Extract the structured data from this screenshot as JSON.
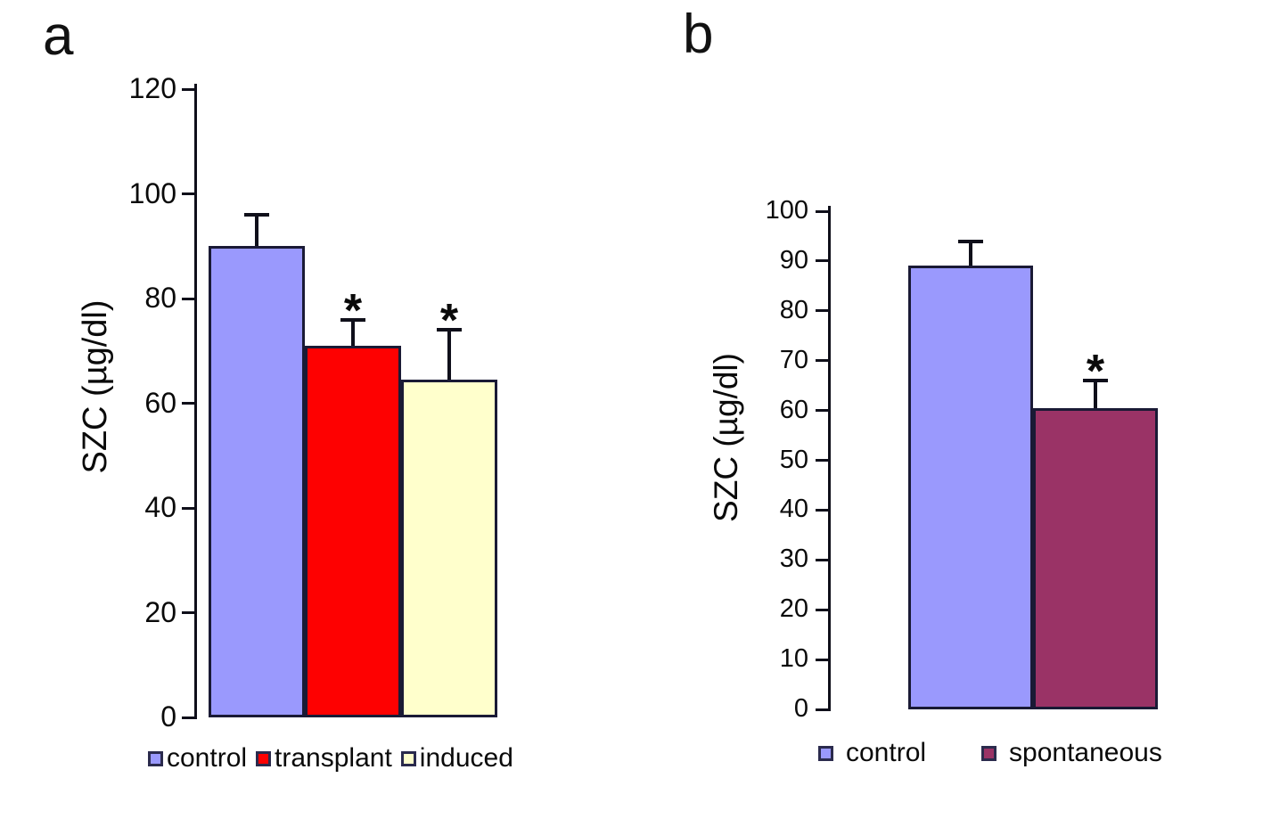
{
  "figure": {
    "background": "#ffffff",
    "text_color": "#000000"
  },
  "chart_data": [
    {
      "id": "a",
      "panel_label": "a",
      "type": "bar",
      "title": "",
      "xlabel": "",
      "ylabel": "SZC (µg/dl)",
      "ylim": [
        0,
        120
      ],
      "yticks": [
        0,
        20,
        40,
        60,
        80,
        100,
        120
      ],
      "grid": false,
      "legend_position": "bottom",
      "categories": [
        "control",
        "transplant",
        "induced"
      ],
      "values": [
        90,
        71,
        64.5
      ],
      "error_plus": [
        6,
        5,
        9.5
      ],
      "sig_markers": [
        "",
        "*",
        "*"
      ],
      "bar_colors": [
        "#9a99fd",
        "#fe0101",
        "#ffffcc"
      ],
      "bar_border_color": "#1a1a35",
      "legend": [
        {
          "label": "control",
          "color": "#9a99fd"
        },
        {
          "label": "transplant",
          "color": "#fe0101"
        },
        {
          "label": "induced",
          "color": "#ffffcc"
        }
      ]
    },
    {
      "id": "b",
      "panel_label": "b",
      "type": "bar",
      "title": "",
      "xlabel": "",
      "ylabel": "SZC (µg/dl)",
      "ylim": [
        0,
        100
      ],
      "yticks": [
        0,
        10,
        20,
        30,
        40,
        50,
        60,
        70,
        80,
        90,
        100
      ],
      "grid": false,
      "legend_position": "bottom",
      "categories": [
        "control",
        "spontaneous"
      ],
      "values": [
        89,
        60.5
      ],
      "error_plus": [
        5,
        5.5
      ],
      "sig_markers": [
        "",
        "*"
      ],
      "bar_colors": [
        "#9a99fd",
        "#9a3366"
      ],
      "bar_border_color": "#1a1a35",
      "legend": [
        {
          "label": "control",
          "color": "#9a99fd"
        },
        {
          "label": "spontaneous",
          "color": "#9a3366"
        }
      ]
    }
  ]
}
